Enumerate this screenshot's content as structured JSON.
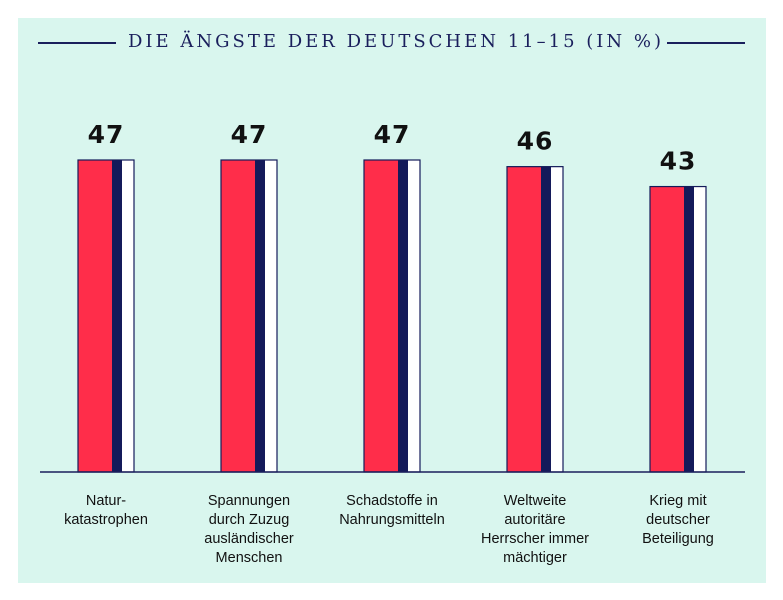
{
  "chart_data": {
    "type": "bar",
    "title": "DIE ÄNGSTE DER DEUTSCHEN 11–15 (IN %)",
    "categories": [
      "Natur-\nkatastrophen",
      "Spannungen\ndurch Zuzug\nausländischer\nMenschen",
      "Schadstoffe in\nNahrungsmitteln",
      "Weltweite\nautoritäre\nHerrscher immer\nmächtiger",
      "Krieg mit\ndeutscher\nBeteiligung"
    ],
    "values": [
      47,
      47,
      47,
      46,
      43
    ],
    "value_labels": [
      "47",
      "47",
      "47",
      "46",
      "43"
    ],
    "xlabel": "",
    "ylabel": "",
    "ylim": [
      0,
      47
    ],
    "grid": false,
    "legend": "none"
  },
  "colors": {
    "background": "#d9f6ee",
    "bar_red": "#ff2d4a",
    "bar_navy": "#141a5a",
    "bar_white": "#ffffff",
    "axis": "#1a1f5c",
    "text": "#111111"
  }
}
